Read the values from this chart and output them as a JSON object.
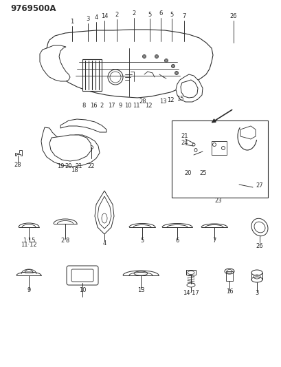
{
  "diagram_number": "9769500A",
  "background_color": "#ffffff",
  "line_color": "#2a2a2a",
  "label_fontsize": 6.5,
  "title_fontsize": 8.5,
  "fig_width": 4.1,
  "fig_height": 5.33,
  "dpi": 100
}
